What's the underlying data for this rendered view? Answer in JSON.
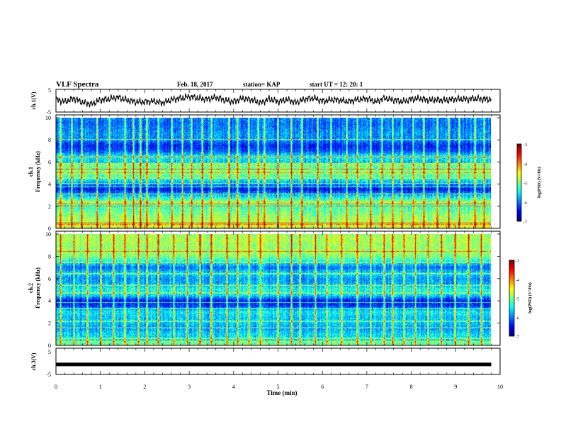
{
  "header": {
    "title": "VLF Spectra",
    "date": "Feb. 18, 2017",
    "station": "station= KAP",
    "start": "start  UT =   12: 20: 1"
  },
  "colorbar": {
    "label": "log(PSD) (V²/Hz)",
    "ticks": [
      "-3",
      "-4",
      "-5",
      "-6",
      "-7"
    ]
  },
  "chart_data": [
    {
      "type": "line",
      "ylabel": "ch.1(V)",
      "ylim": [
        -5,
        5
      ],
      "yticks": [
        "5",
        "-5"
      ],
      "xlim": [
        0,
        10
      ],
      "color": "#000000",
      "x": [
        0,
        0.2,
        0.4,
        0.6,
        0.8,
        1.0,
        1.2,
        1.4,
        1.6,
        1.8,
        2.0,
        2.2,
        2.4,
        2.6,
        2.8,
        3.0,
        3.2,
        3.4,
        3.6,
        3.8,
        4.0,
        4.2,
        4.4,
        4.6,
        4.8,
        5.0,
        5.2,
        5.4,
        5.6,
        5.8,
        6.0,
        6.2,
        6.4,
        6.6,
        6.8,
        7.0,
        7.2,
        7.4,
        7.6,
        7.8,
        8.0,
        8.2,
        8.4,
        8.6,
        8.8,
        9.0,
        9.2,
        9.4,
        9.6,
        9.8
      ],
      "y": [
        0.5,
        -0.5,
        1.0,
        -0.8,
        -1.5,
        0.3,
        0.8,
        1.5,
        0.2,
        -0.5,
        -0.6,
        -0.2,
        -1.0,
        0.5,
        1.0,
        1.8,
        1.2,
        0.6,
        1.5,
        0.2,
        -0.5,
        1.0,
        0.5,
        -1.0,
        0.8,
        -0.4,
        0.5,
        -0.8,
        0.6,
        1.2,
        -0.3,
        0.5,
        0.2,
        -0.4,
        0.6,
        0.9,
        -0.4,
        1.1,
        0.3,
        -0.4,
        0.6,
        1.0,
        0.2,
        0.4,
        0.2,
        0.8,
        0.6,
        0.9,
        0.7,
        0.6
      ]
    },
    {
      "type": "heatmap",
      "ylabel": "ch.1",
      "ylabel2": "Frequency (kHz)",
      "ylim": [
        0,
        10
      ],
      "yticks": [
        "0",
        "2",
        "4",
        "6",
        "8",
        "10"
      ],
      "xlim": [
        0,
        10
      ],
      "zlim": [
        -7,
        -3
      ],
      "freq_profile_khz": [
        0,
        0.5,
        1,
        1.5,
        2,
        2.5,
        3,
        3.5,
        4,
        4.5,
        5,
        5.5,
        6,
        6.5,
        7,
        7.5,
        8,
        8.5,
        9,
        9.5,
        10
      ],
      "freq_profile_logpsd": [
        -4.7,
        -4.8,
        -4.9,
        -5.1,
        -5.3,
        -5.1,
        -5.8,
        -6.5,
        -6.0,
        -5.4,
        -5.0,
        -5.1,
        -5.7,
        -5.5,
        -6.2,
        -6.4,
        -6.0,
        -5.9,
        -6.0,
        -6.1,
        -6.0
      ],
      "narrowband_lines_khz": [
        0.3,
        0.45,
        2.0,
        2.2,
        2.35,
        3.1,
        3.75,
        4.05,
        4.55,
        5.05,
        5.35,
        5.7,
        5.85,
        6.45,
        8.05
      ],
      "impulse_times_min": [
        0.1,
        0.35,
        0.58,
        0.92,
        1.2,
        1.55,
        1.75,
        1.9,
        2.05,
        2.3,
        2.6,
        2.85,
        3.05,
        3.3,
        3.5,
        3.9,
        4.1,
        4.35,
        4.55,
        4.7,
        5.0,
        5.3,
        5.55,
        5.9,
        6.2,
        6.55,
        6.8,
        7.1,
        7.35,
        7.6,
        7.8,
        8.05,
        8.3,
        8.6,
        8.85,
        9.1,
        9.45,
        9.65
      ]
    },
    {
      "type": "heatmap",
      "ylabel": "ch.2",
      "ylabel2": "Frequency (kHz)",
      "ylim": [
        0,
        10
      ],
      "yticks": [
        "0",
        "2",
        "4",
        "6",
        "8",
        "10"
      ],
      "xlim": [
        0,
        10
      ],
      "zlim": [
        -7,
        -3
      ],
      "freq_profile_khz": [
        0,
        0.5,
        1,
        1.5,
        2,
        2.5,
        3,
        3.5,
        4,
        4.5,
        5,
        5.5,
        6,
        6.5,
        7,
        7.5,
        8,
        8.5,
        9,
        9.5,
        10
      ],
      "freq_profile_logpsd": [
        -5.0,
        -5.6,
        -5.6,
        -5.9,
        -5.7,
        -5.7,
        -5.5,
        -6.3,
        -6.5,
        -5.6,
        -5.4,
        -5.8,
        -5.9,
        -5.6,
        -6.1,
        -5.5,
        -5.0,
        -4.9,
        -4.9,
        -4.8,
        -4.9
      ],
      "narrowband_lines_khz": [
        0.3,
        0.6,
        1.55,
        2.15,
        3.3,
        3.85,
        4.7,
        5.4,
        6.45,
        7.45,
        8.45
      ],
      "impulse_times_min": [
        0.1,
        0.4,
        0.7,
        1.0,
        1.3,
        1.55,
        1.85,
        2.05,
        2.3,
        2.65,
        2.95,
        3.25,
        3.5,
        3.85,
        4.1,
        4.35,
        4.6,
        5.0,
        5.3,
        5.5,
        5.85,
        6.1,
        6.45,
        6.8,
        7.1,
        7.4,
        7.6,
        7.85,
        8.1,
        8.4,
        8.7,
        9.0,
        9.3,
        9.6
      ]
    },
    {
      "type": "line",
      "ylabel": "ch.3(V)",
      "xlabel": "Time (min)",
      "ylim": [
        -5,
        5
      ],
      "yticks": [
        "5",
        "-5"
      ],
      "xlim": [
        0,
        10
      ],
      "xticks": [
        "0",
        "1",
        "2",
        "3",
        "4",
        "5",
        "6",
        "7",
        "8",
        "9",
        "10"
      ],
      "x": [
        0,
        9.8
      ],
      "y": [
        -1.3,
        -1.3
      ],
      "color": "#000000"
    }
  ]
}
